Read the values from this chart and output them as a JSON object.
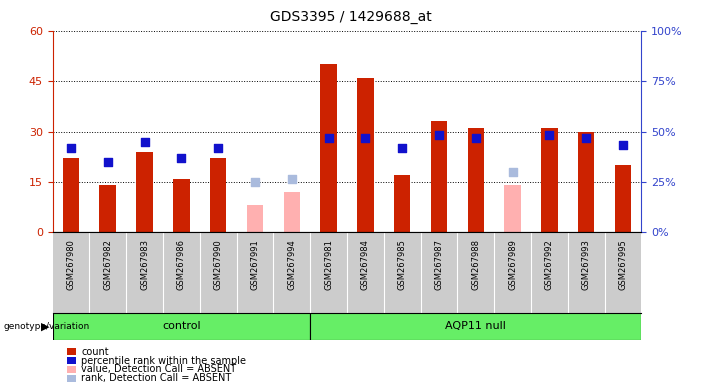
{
  "title": "GDS3395 / 1429688_at",
  "samples": [
    "GSM267980",
    "GSM267982",
    "GSM267983",
    "GSM267986",
    "GSM267990",
    "GSM267991",
    "GSM267994",
    "GSM267981",
    "GSM267984",
    "GSM267985",
    "GSM267987",
    "GSM267988",
    "GSM267989",
    "GSM267992",
    "GSM267993",
    "GSM267995"
  ],
  "control_count": 7,
  "count": [
    22,
    14,
    24,
    16,
    22,
    null,
    null,
    50,
    46,
    17,
    33,
    31,
    null,
    31,
    30,
    20
  ],
  "percentile_rank": [
    25,
    21,
    27,
    22,
    25,
    null,
    null,
    28,
    28,
    25,
    29,
    28,
    null,
    29,
    28,
    26
  ],
  "absent_value": [
    null,
    null,
    null,
    null,
    null,
    8,
    12,
    null,
    null,
    null,
    null,
    null,
    14,
    null,
    null,
    null
  ],
  "absent_rank": [
    null,
    null,
    null,
    null,
    null,
    15,
    16,
    null,
    null,
    null,
    null,
    null,
    18,
    null,
    null,
    null
  ],
  "ylim_left": [
    0,
    60
  ],
  "ylim_right": [
    0,
    100
  ],
  "yticks_left": [
    0,
    15,
    30,
    45,
    60
  ],
  "yticks_right": [
    0,
    25,
    50,
    75,
    100
  ],
  "bar_color_red": "#cc2200",
  "bar_color_blue": "#1111cc",
  "bar_color_pink": "#ffb0b0",
  "bar_color_lightblue": "#aabbdd",
  "group_color": "#66ee66",
  "cell_bg": "#cccccc",
  "title_fontsize": 10,
  "tick_fontsize": 8,
  "sample_fontsize": 6,
  "legend_fontsize": 7,
  "group_fontsize": 8
}
